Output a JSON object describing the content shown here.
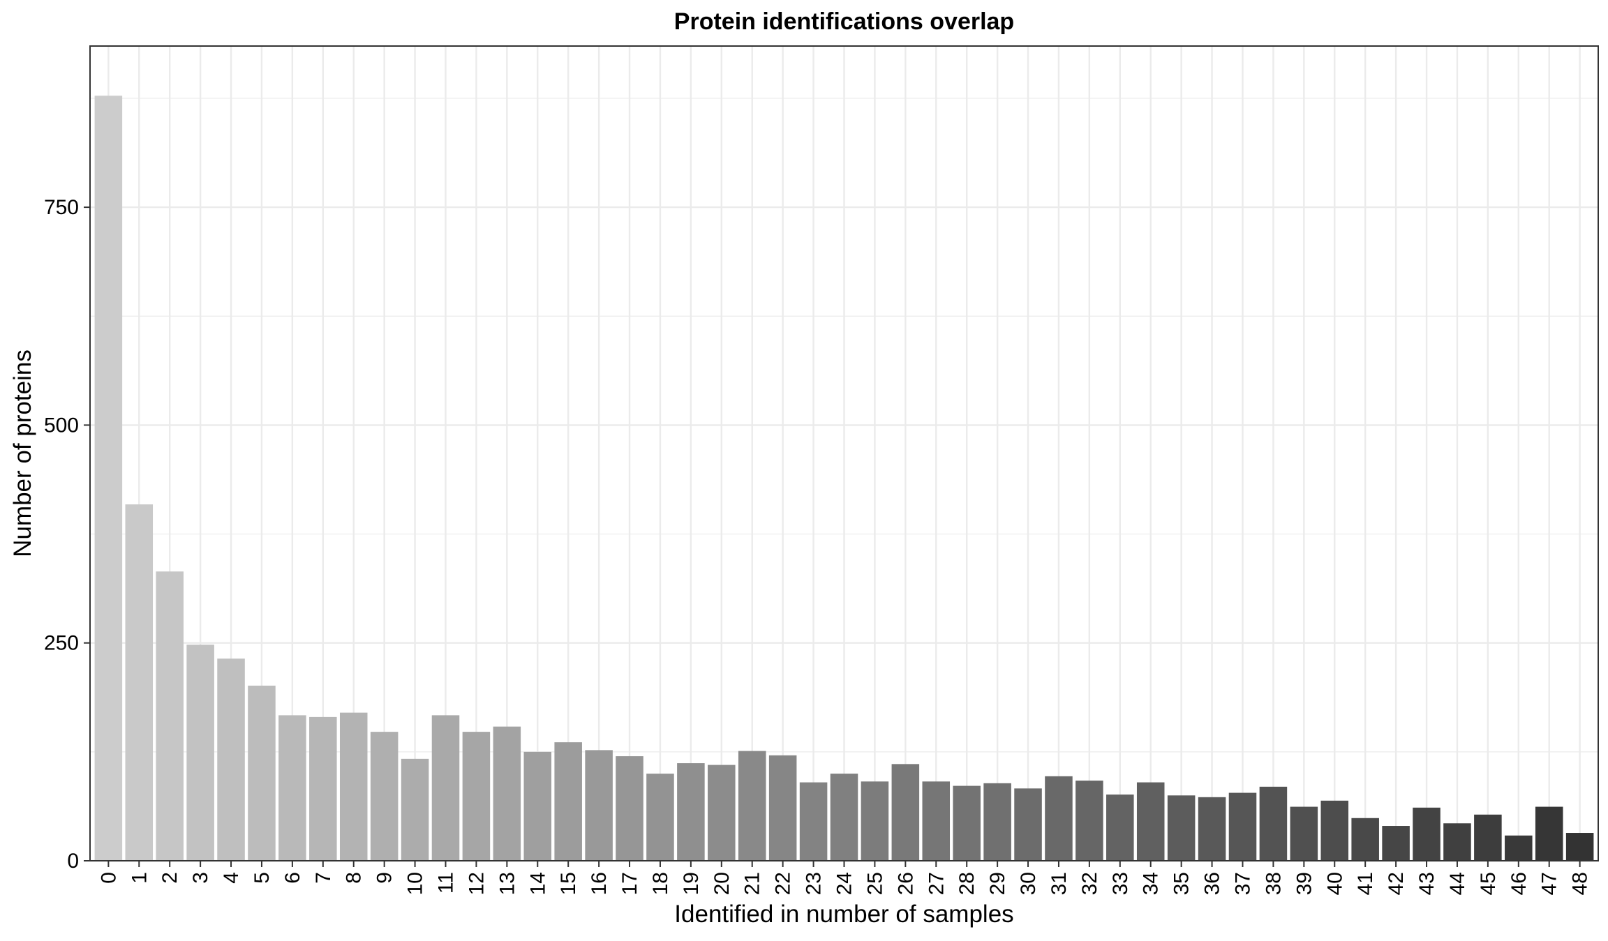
{
  "chart_data": {
    "type": "bar",
    "title": "Protein identifications overlap",
    "xlabel": "Identified in number of samples",
    "ylabel": "Number of proteins",
    "categories": [
      "0",
      "1",
      "2",
      "3",
      "4",
      "5",
      "6",
      "7",
      "8",
      "9",
      "10",
      "11",
      "12",
      "13",
      "14",
      "15",
      "16",
      "17",
      "18",
      "19",
      "20",
      "21",
      "22",
      "23",
      "24",
      "25",
      "26",
      "27",
      "28",
      "29",
      "30",
      "31",
      "32",
      "33",
      "34",
      "35",
      "36",
      "37",
      "38",
      "39",
      "40",
      "41",
      "42",
      "43",
      "44",
      "45",
      "46",
      "47",
      "48"
    ],
    "values": [
      878,
      409,
      332,
      248,
      232,
      201,
      167,
      165,
      170,
      148,
      117,
      167,
      148,
      154,
      125,
      136,
      127,
      120,
      100,
      112,
      110,
      126,
      121,
      90,
      100,
      91,
      111,
      91,
      86,
      89,
      83,
      97,
      92,
      76,
      90,
      75,
      73,
      78,
      85,
      62,
      69,
      49,
      40,
      61,
      43,
      53,
      29,
      62,
      32
    ],
    "ylim": [
      0,
      935
    ],
    "yticks": [
      0,
      250,
      500,
      750
    ],
    "grid": true,
    "legend": "none",
    "colors": {
      "bar_start": "#cccccc",
      "bar_end": "#333333",
      "grid": "#ebebeb",
      "panel_border": "#333333",
      "background": "#ffffff"
    }
  }
}
